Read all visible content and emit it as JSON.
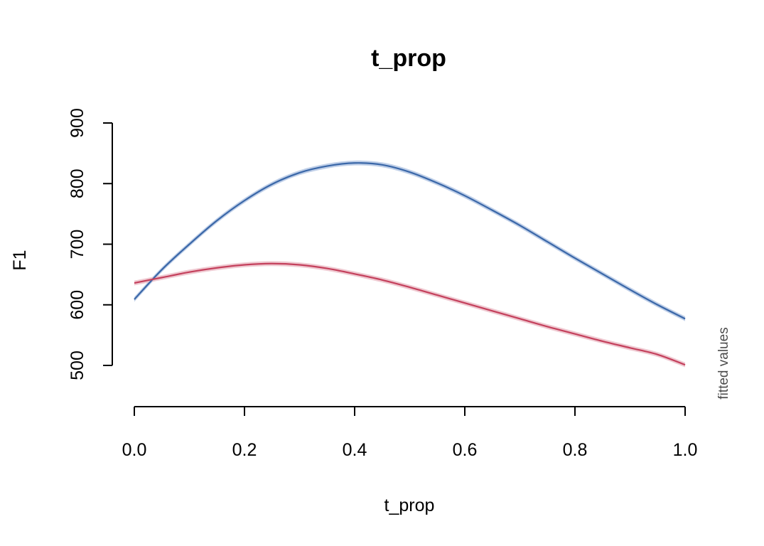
{
  "chart_data": {
    "type": "line",
    "title": "t_prop",
    "xlabel": "t_prop",
    "ylabel": "F1",
    "side_note": "fitted values",
    "xlim": [
      0,
      1
    ],
    "ylim": [
      500,
      900
    ],
    "x_ticks": [
      "0.0",
      "0.2",
      "0.4",
      "0.6",
      "0.8",
      "1.0"
    ],
    "y_ticks": [
      "500",
      "600",
      "700",
      "800",
      "900"
    ],
    "grid": false,
    "legend": "none",
    "x": [
      0.0,
      0.05,
      0.1,
      0.15,
      0.2,
      0.25,
      0.3,
      0.35,
      0.4,
      0.45,
      0.5,
      0.55,
      0.6,
      0.65,
      0.7,
      0.75,
      0.8,
      0.85,
      0.9,
      0.95,
      1.0
    ],
    "series": [
      {
        "color": "#3a67a8",
        "band_color": "#a9bfe0",
        "values": [
          609,
          658,
          700,
          739,
          772,
          799,
          818,
          829,
          834,
          831,
          819,
          801,
          780,
          756,
          731,
          704,
          677,
          651,
          625,
          600,
          577
        ],
        "band": 4
      },
      {
        "color": "#c4405c",
        "band_color": "#eab7c2",
        "values": [
          636,
          645,
          654,
          661,
          666,
          668,
          666,
          660,
          651,
          641,
          629,
          616,
          603,
          590,
          577,
          564,
          552,
          540,
          529,
          518,
          501
        ],
        "band": 4
      }
    ]
  }
}
